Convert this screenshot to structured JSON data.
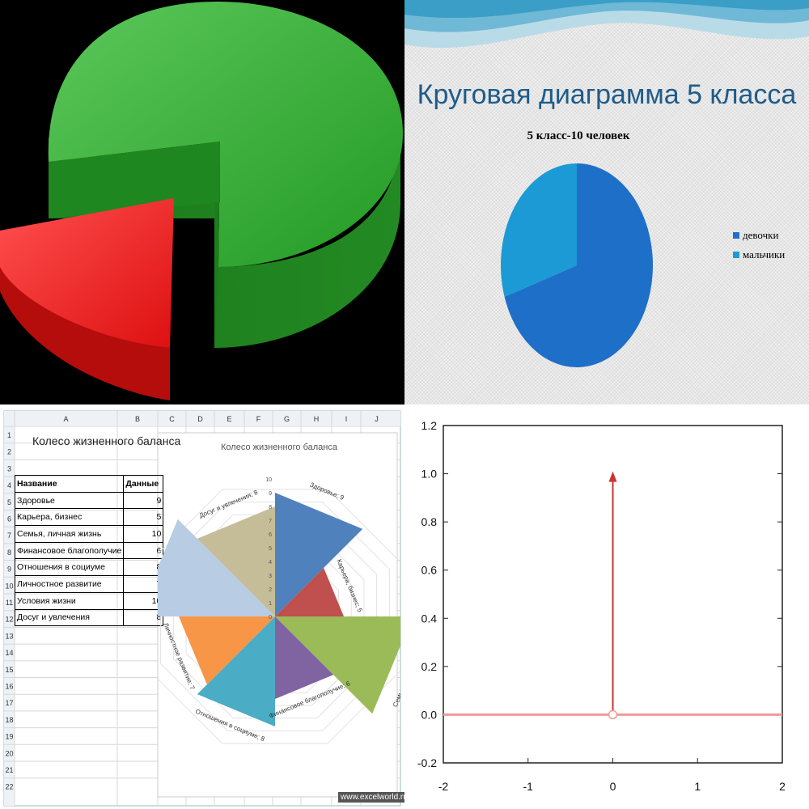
{
  "chart_data": [
    {
      "type": "pie",
      "categories": [
        "",
        ""
      ],
      "values": [
        81,
        19
      ],
      "colors": [
        "#2f9a2f",
        "#ee2222"
      ],
      "style": "3d-exploded"
    },
    {
      "type": "pie",
      "title": "Круговая диаграмма 5 класса",
      "subtitle": "5 класс-10 человек",
      "categories": [
        "девочки",
        "мальчики"
      ],
      "values": [
        7,
        3
      ],
      "colors": [
        "#1e6fc8",
        "#1b9ad6"
      ],
      "legend": "right"
    },
    {
      "type": "pie",
      "style": "polar-area",
      "title": "Колесо жизненного баланса",
      "categories": [
        "Здоровье",
        "Карьера, бизнес",
        "Семья, личная жизнь",
        "Финансовое благополучие",
        "Отношения в социуме",
        "Личностное развитие",
        "Условия жизни",
        "Досуг и увлечения"
      ],
      "values": [
        9,
        5,
        10,
        6,
        8,
        7,
        10,
        8
      ],
      "point_labels": [
        "Здоровье; 9",
        "Карьера, бизнес; 5",
        "Семья, личная жизнь; 10",
        "Финансовое благополучие; 6",
        "Отношения в социуме; 8",
        "Личностное развитие; 7",
        "Условия жизни; 10",
        "Досуг и увлечения; 8"
      ],
      "colors": [
        "#4f81bd",
        "#c0504d",
        "#9bbb59",
        "#8064a2",
        "#4bacc6",
        "#f79646",
        "#b8cce4",
        "#c4bd97"
      ],
      "radial_ticks": [
        "0",
        "1",
        "2",
        "3",
        "4",
        "5",
        "6",
        "7",
        "8",
        "9",
        "10"
      ],
      "rlim": [
        0,
        10
      ]
    },
    {
      "type": "line",
      "series": [
        {
          "x": [
            -2,
            2
          ],
          "y": [
            0,
            0
          ]
        },
        {
          "x": [
            0,
            0
          ],
          "y": [
            0,
            1
          ]
        }
      ],
      "xlim": [
        -2,
        2
      ],
      "ylim": [
        -0.2,
        1.2
      ],
      "xticks": [
        "-2",
        "-1",
        "0",
        "1",
        "2"
      ],
      "yticks": [
        "1.2",
        "1.0",
        "0.8",
        "0.6",
        "0.4",
        "0.2",
        "0.0",
        "-0.2"
      ],
      "color": "#cc3333"
    }
  ],
  "spreadsheet": {
    "columns": [
      "A",
      "B",
      "C",
      "D",
      "E",
      "F",
      "G",
      "H",
      "I",
      "J"
    ],
    "rows": [
      "1",
      "2",
      "3",
      "4",
      "5",
      "6",
      "7",
      "8",
      "9",
      "10",
      "11",
      "12",
      "13",
      "14",
      "15",
      "16",
      "17",
      "18",
      "19",
      "20",
      "21",
      "22"
    ],
    "title": "Колесо жизненного баланса",
    "header": [
      "Название",
      "Данные"
    ],
    "data": [
      [
        "Здоровье",
        "9"
      ],
      [
        "Карьера, бизнес",
        "5"
      ],
      [
        "Семья, личная жизнь",
        "10"
      ],
      [
        "Финансовое благополучие",
        "6"
      ],
      [
        "Отношения в социуме",
        "8"
      ],
      [
        "Личностное развитие",
        "7"
      ],
      [
        "Условия жизни",
        "10"
      ],
      [
        "Досуг и увлечения",
        "8"
      ]
    ],
    "watermark": "www.excelworld.ru"
  }
}
